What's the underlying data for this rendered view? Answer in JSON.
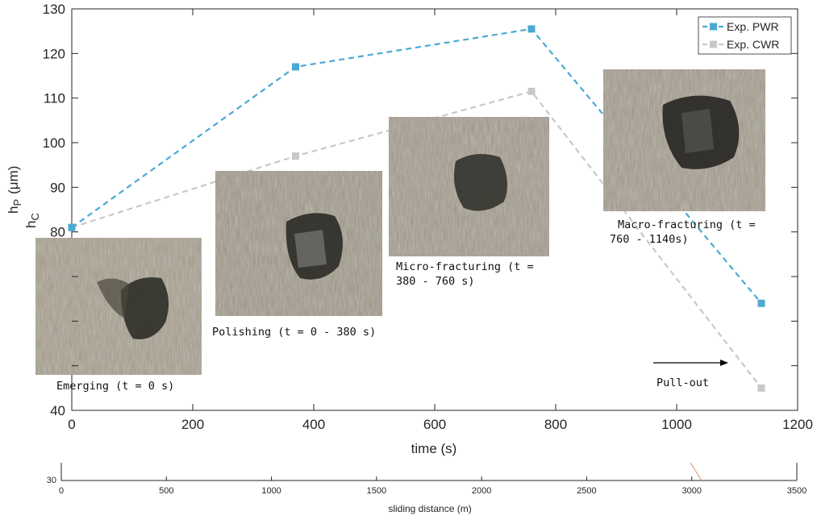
{
  "chart_data": {
    "type": "line",
    "xlabel": "time (s)",
    "ylabel_primary": "h",
    "ylabel_primary_sub": "P",
    "ylabel_unit": "(μm)",
    "ylabel_secondary": "h",
    "ylabel_secondary_sub": "C",
    "xlim": [
      0,
      1200
    ],
    "ylim": [
      40,
      130
    ],
    "xticks": [
      0,
      200,
      400,
      600,
      800,
      1000,
      1200
    ],
    "yticks": [
      40,
      50,
      60,
      70,
      80,
      90,
      100,
      110,
      120,
      130
    ],
    "ytick_labels": [
      "40",
      "",
      "",
      "",
      "80",
      "90",
      "100",
      "110",
      "120",
      "130"
    ],
    "grid": false,
    "legend_position": "top-right",
    "series": [
      {
        "name": "Exp. PWR",
        "color": "#4aa9d3",
        "x": [
          0,
          370,
          760,
          1140
        ],
        "y": [
          81,
          117,
          125.5,
          64
        ]
      },
      {
        "name": "Exp. CWR",
        "color": "#c8c8c8",
        "x": [
          0,
          370,
          760,
          1140
        ],
        "y": [
          81,
          97,
          111.5,
          45
        ]
      }
    ],
    "secondary_axis": {
      "label": "sliding distance (m)",
      "xlim": [
        0,
        3500
      ],
      "ticks": [
        0,
        500,
        1000,
        1500,
        2000,
        2500,
        3000,
        3500
      ],
      "y_tick_label": "30"
    },
    "annotations": [
      {
        "text": "Emerging (t = 0 s)",
        "stage": "emerging"
      },
      {
        "text": "Polishing (t = 0 - 380 s)",
        "stage": "polishing"
      },
      {
        "text": "Micro-fracturing (t =",
        "text2": "380 - 760 s)",
        "stage": "micro"
      },
      {
        "text": "Macro-fracturing (t =",
        "text2": "760  - 1140s)",
        "stage": "macro"
      },
      {
        "text": "Pull-out",
        "stage": "pullout"
      }
    ]
  },
  "colors": {
    "axis": "#262626",
    "photo_base": "#a49a86",
    "photo_dark": "#3a3832",
    "arrow": "#000000",
    "secondary_tick_mark": "#e08f6d"
  }
}
